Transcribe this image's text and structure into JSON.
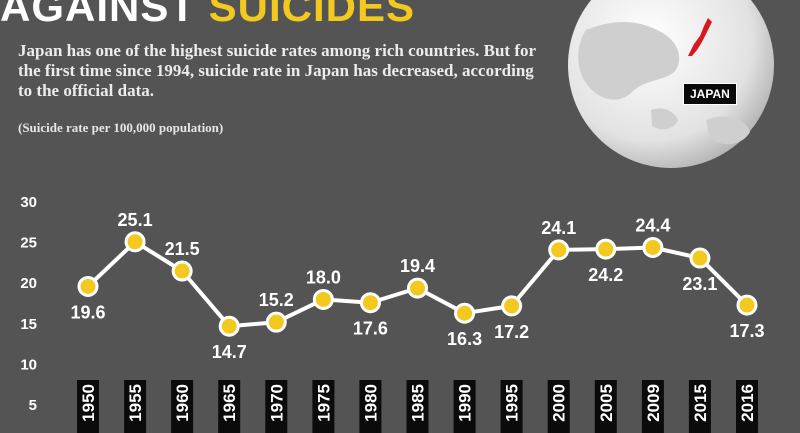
{
  "headline": {
    "word1": "AGAINST",
    "word2": "SUICIDES"
  },
  "intro": "Japan has one of the highest suicide rates among rich countries. But for the first time since 1994, suicide rate in Japan has decreased, according to the official data.",
  "map_label": "JAPAN",
  "colors": {
    "background": "#545454",
    "accent": "#f3c91f",
    "line": "#ffffff",
    "point_fill": "#f3c91f",
    "japan_highlight": "#d7191f"
  },
  "chart_data": {
    "type": "line",
    "title": "",
    "subtitle": "(Suicide rate per 100,000 population)",
    "xlabel": "",
    "ylabel": "",
    "categories": [
      "1950",
      "1955",
      "1960",
      "1965",
      "1970",
      "1975",
      "1980",
      "1985",
      "1990",
      "1995",
      "2000",
      "2005",
      "2009",
      "2015",
      "2016"
    ],
    "series": [
      {
        "values": [
          19.6,
          25.1,
          21.5,
          14.7,
          15.2,
          18.0,
          17.6,
          19.4,
          16.3,
          17.2,
          24.1,
          24.2,
          24.4,
          23.1,
          17.3
        ]
      }
    ],
    "data_labels": [
      "19.6",
      "25.1",
      "21.5",
      "14.7",
      "15.2",
      "18.0",
      "17.6",
      "19.4",
      "16.3",
      "17.2",
      "24.1",
      "24.2",
      "24.4",
      "23.1",
      "17.3"
    ],
    "label_positions": [
      "below",
      "above",
      "above",
      "below",
      "above",
      "above",
      "below",
      "above",
      "below",
      "below",
      "above",
      "below",
      "above",
      "below",
      "below"
    ],
    "yticks": [
      "5",
      "10",
      "15",
      "20",
      "25",
      "30"
    ],
    "ylim": [
      5,
      30
    ],
    "grid": false,
    "legend": "none"
  }
}
